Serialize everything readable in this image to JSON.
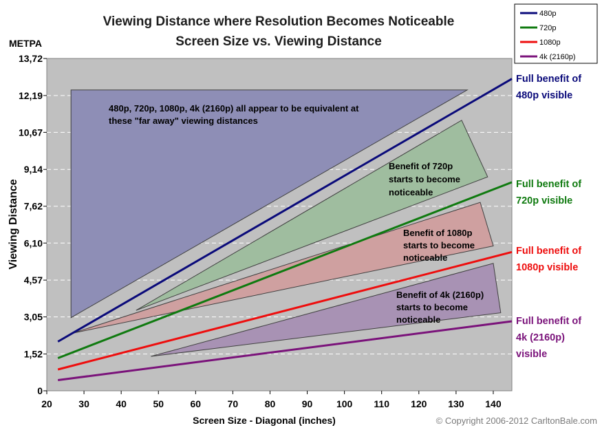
{
  "chart_data": {
    "type": "line",
    "title": "Viewing Distance where Resolution Becomes Noticeable",
    "subtitle": "Screen Size vs. Viewing Distance",
    "ylabel": "Viewing Distance",
    "yunit": "METPA",
    "xlabel": "Screen Size - Diagonal (inches)",
    "xlim": [
      20,
      145
    ],
    "ylim": [
      0,
      13.72
    ],
    "xticks": [
      "20",
      "30",
      "40",
      "50",
      "60",
      "70",
      "80",
      "90",
      "100",
      "110",
      "120",
      "130",
      "140"
    ],
    "yticks": [
      "0",
      "1,52",
      "3,05",
      "4,57",
      "6,10",
      "7,62",
      "9,14",
      "10,67",
      "12,19",
      "13,72"
    ],
    "grid": true,
    "legend": {
      "position": "top-right",
      "entries": [
        "480p",
        "720p",
        "1080p",
        "4k (2160p)"
      ]
    },
    "series": [
      {
        "name": "480p",
        "color": "#0a0a7a",
        "x": [
          23,
          145
        ],
        "y": [
          2.03,
          12.88
        ]
      },
      {
        "name": "720p",
        "color": "#0f7a0f",
        "x": [
          23,
          145
        ],
        "y": [
          1.35,
          8.61
        ]
      },
      {
        "name": "1080p",
        "color": "#ee0d0d",
        "x": [
          23,
          145
        ],
        "y": [
          0.88,
          5.73
        ]
      },
      {
        "name": "4k (2160p)",
        "color": "#7a127a",
        "x": [
          23,
          145
        ],
        "y": [
          0.44,
          2.87
        ]
      }
    ],
    "regions": [
      {
        "fill": "#8e8eb6",
        "points": [
          [
            26.5,
            12.42
          ],
          [
            133,
            12.42
          ],
          [
            26.5,
            3.02
          ]
        ]
      },
      {
        "fill": "#9fbd9f",
        "points": [
          [
            44,
            3.32
          ],
          [
            131.5,
            11.17
          ],
          [
            138.5,
            8.83
          ]
        ]
      },
      {
        "fill": "#cfa0a0",
        "points": [
          [
            27,
            2.38
          ],
          [
            136.5,
            7.78
          ],
          [
            140,
            5.98
          ]
        ]
      },
      {
        "fill": "#a892b4",
        "points": [
          [
            48,
            1.42
          ],
          [
            140,
            5.26
          ],
          [
            142,
            3.22
          ]
        ]
      }
    ],
    "annotations": [
      {
        "lines": [
          "480p, 720p, 1080p, 4k (2160p) all appear to be equivalent at",
          "these \"far away\" viewing distances"
        ]
      },
      {
        "lines": [
          "Benefit of 720p",
          "starts to become",
          "noticeable"
        ]
      },
      {
        "lines": [
          "Benefit of 1080p",
          "starts to become",
          "noticeable"
        ]
      },
      {
        "lines": [
          "Benefit of 4k (2160p)",
          "starts to become",
          "noticeable"
        ]
      }
    ],
    "right_labels": [
      {
        "lines": [
          "Full benefit of",
          "480p visible"
        ],
        "color": "#0a0a7a"
      },
      {
        "lines": [
          "Full benefit of",
          "720p visible"
        ],
        "color": "#0f7a0f"
      },
      {
        "lines": [
          "Full benefit of",
          "1080p visible"
        ],
        "color": "#ee0d0d"
      },
      {
        "lines": [
          "Full benefit of",
          "4k (2160p)",
          "visible"
        ],
        "color": "#7a127a"
      }
    ]
  },
  "copyright": "© Copyright 2006-2012 CarltonBale.com"
}
